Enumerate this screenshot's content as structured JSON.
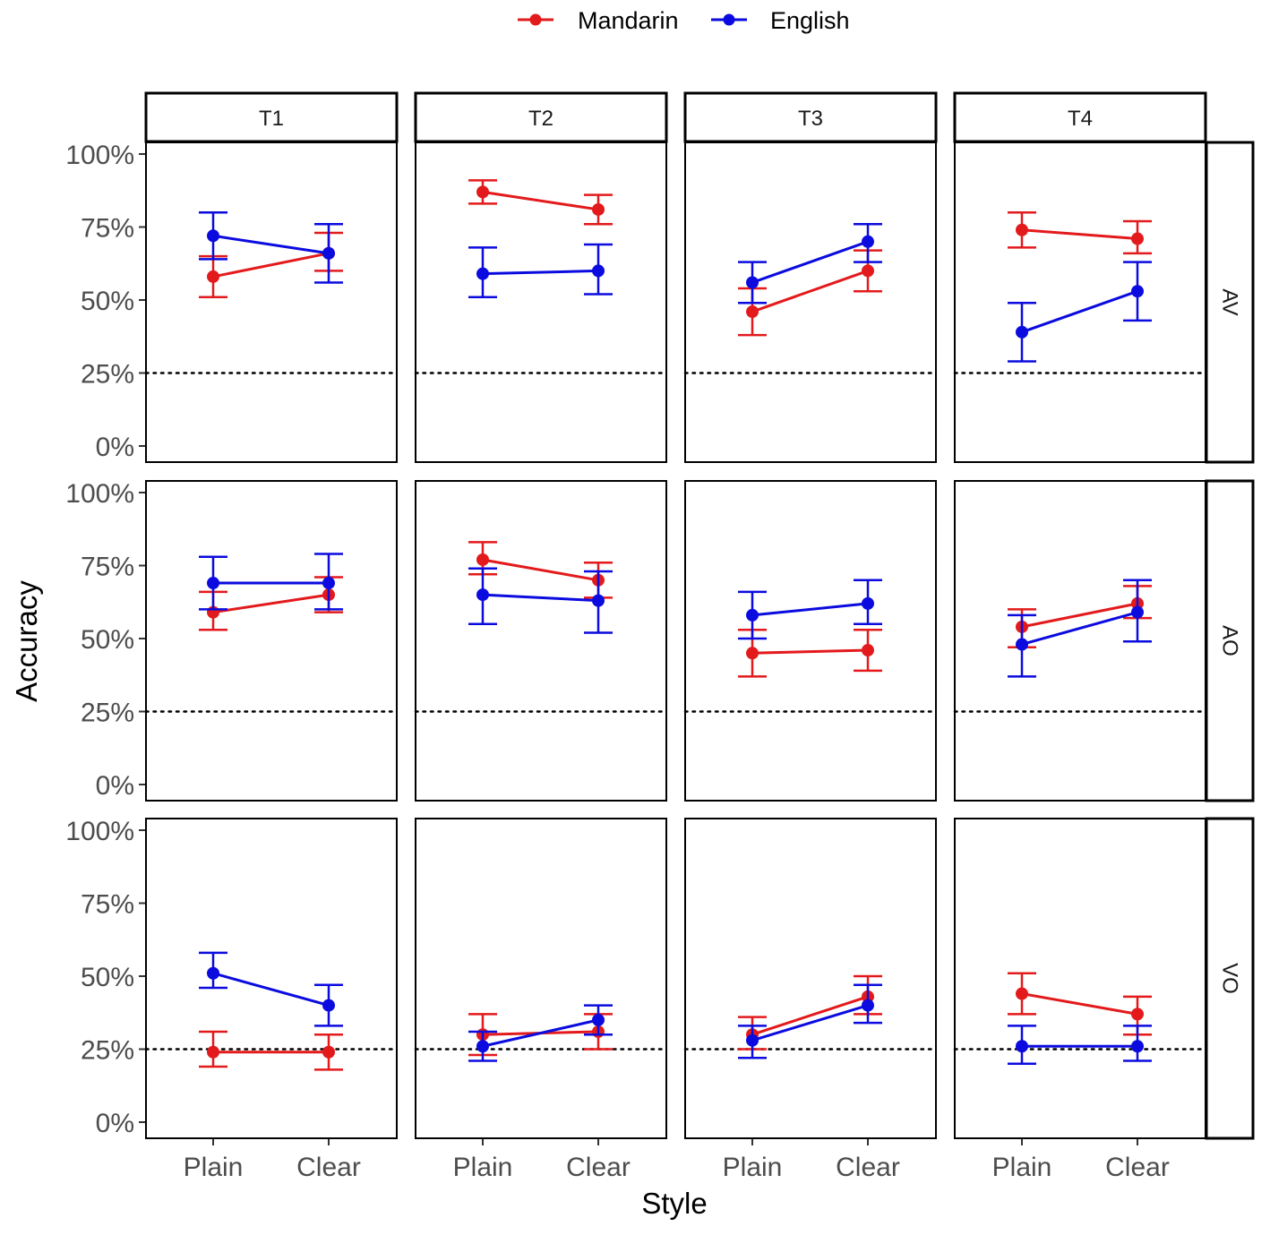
{
  "chart_data": {
    "type": "line",
    "facet_columns": [
      "T1",
      "T2",
      "T3",
      "T4"
    ],
    "facet_rows": [
      "AV",
      "AO",
      "VO"
    ],
    "categories": [
      "Plain",
      "Clear"
    ],
    "xlabel": "Style",
    "ylabel": "Accuracy",
    "ylim": [
      0,
      100
    ],
    "yticks": [
      0,
      25,
      50,
      75,
      100
    ],
    "ytick_labels": [
      "0%",
      "25%",
      "50%",
      "75%",
      "100%"
    ],
    "reference_line": 25,
    "legend": {
      "position": "top",
      "entries": [
        "Mandarin",
        "English"
      ]
    },
    "colors": {
      "Mandarin": "#e31a1c",
      "English": "#0b0bdf"
    },
    "panels": [
      {
        "row": "AV",
        "col": "T1",
        "series": [
          {
            "name": "Mandarin",
            "values": [
              58,
              66
            ],
            "lower": [
              51,
              60
            ],
            "upper": [
              65,
              73
            ]
          },
          {
            "name": "English",
            "values": [
              72,
              66
            ],
            "lower": [
              64,
              56
            ],
            "upper": [
              80,
              76
            ]
          }
        ]
      },
      {
        "row": "AV",
        "col": "T2",
        "series": [
          {
            "name": "Mandarin",
            "values": [
              87,
              81
            ],
            "lower": [
              83,
              76
            ],
            "upper": [
              91,
              86
            ]
          },
          {
            "name": "English",
            "values": [
              59,
              60
            ],
            "lower": [
              51,
              52
            ],
            "upper": [
              68,
              69
            ]
          }
        ]
      },
      {
        "row": "AV",
        "col": "T3",
        "series": [
          {
            "name": "Mandarin",
            "values": [
              46,
              60
            ],
            "lower": [
              38,
              53
            ],
            "upper": [
              54,
              67
            ]
          },
          {
            "name": "English",
            "values": [
              56,
              70
            ],
            "lower": [
              49,
              63
            ],
            "upper": [
              63,
              76
            ]
          }
        ]
      },
      {
        "row": "AV",
        "col": "T4",
        "series": [
          {
            "name": "Mandarin",
            "values": [
              74,
              71
            ],
            "lower": [
              68,
              66
            ],
            "upper": [
              80,
              77
            ]
          },
          {
            "name": "English",
            "values": [
              39,
              53
            ],
            "lower": [
              29,
              43
            ],
            "upper": [
              49,
              63
            ]
          }
        ]
      },
      {
        "row": "AO",
        "col": "T1",
        "series": [
          {
            "name": "Mandarin",
            "values": [
              59,
              65
            ],
            "lower": [
              53,
              59
            ],
            "upper": [
              66,
              71
            ]
          },
          {
            "name": "English",
            "values": [
              69,
              69
            ],
            "lower": [
              60,
              60
            ],
            "upper": [
              78,
              79
            ]
          }
        ]
      },
      {
        "row": "AO",
        "col": "T2",
        "series": [
          {
            "name": "Mandarin",
            "values": [
              77,
              70
            ],
            "lower": [
              72,
              64
            ],
            "upper": [
              83,
              76
            ]
          },
          {
            "name": "English",
            "values": [
              65,
              63
            ],
            "lower": [
              55,
              52
            ],
            "upper": [
              74,
              73
            ]
          }
        ]
      },
      {
        "row": "AO",
        "col": "T3",
        "series": [
          {
            "name": "Mandarin",
            "values": [
              45,
              46
            ],
            "lower": [
              37,
              39
            ],
            "upper": [
              53,
              53
            ]
          },
          {
            "name": "English",
            "values": [
              58,
              62
            ],
            "lower": [
              50,
              55
            ],
            "upper": [
              66,
              70
            ]
          }
        ]
      },
      {
        "row": "AO",
        "col": "T4",
        "series": [
          {
            "name": "Mandarin",
            "values": [
              54,
              62
            ],
            "lower": [
              47,
              57
            ],
            "upper": [
              60,
              68
            ]
          },
          {
            "name": "English",
            "values": [
              48,
              59
            ],
            "lower": [
              37,
              49
            ],
            "upper": [
              58,
              70
            ]
          }
        ]
      },
      {
        "row": "VO",
        "col": "T1",
        "series": [
          {
            "name": "Mandarin",
            "values": [
              24,
              24
            ],
            "lower": [
              19,
              18
            ],
            "upper": [
              31,
              30
            ]
          },
          {
            "name": "English",
            "values": [
              51,
              40
            ],
            "lower": [
              46,
              33
            ],
            "upper": [
              58,
              47
            ]
          }
        ]
      },
      {
        "row": "VO",
        "col": "T2",
        "series": [
          {
            "name": "Mandarin",
            "values": [
              30,
              31
            ],
            "lower": [
              23,
              25
            ],
            "upper": [
              37,
              37
            ]
          },
          {
            "name": "English",
            "values": [
              26,
              35
            ],
            "lower": [
              21,
              30
            ],
            "upper": [
              31,
              40
            ]
          }
        ]
      },
      {
        "row": "VO",
        "col": "T3",
        "series": [
          {
            "name": "Mandarin",
            "values": [
              30,
              43
            ],
            "lower": [
              25,
              37
            ],
            "upper": [
              36,
              50
            ]
          },
          {
            "name": "English",
            "values": [
              28,
              40
            ],
            "lower": [
              22,
              34
            ],
            "upper": [
              33,
              47
            ]
          }
        ]
      },
      {
        "row": "VO",
        "col": "T4",
        "series": [
          {
            "name": "Mandarin",
            "values": [
              44,
              37
            ],
            "lower": [
              37,
              30
            ],
            "upper": [
              51,
              43
            ]
          },
          {
            "name": "English",
            "values": [
              26,
              26
            ],
            "lower": [
              20,
              21
            ],
            "upper": [
              33,
              33
            ]
          }
        ]
      }
    ]
  }
}
